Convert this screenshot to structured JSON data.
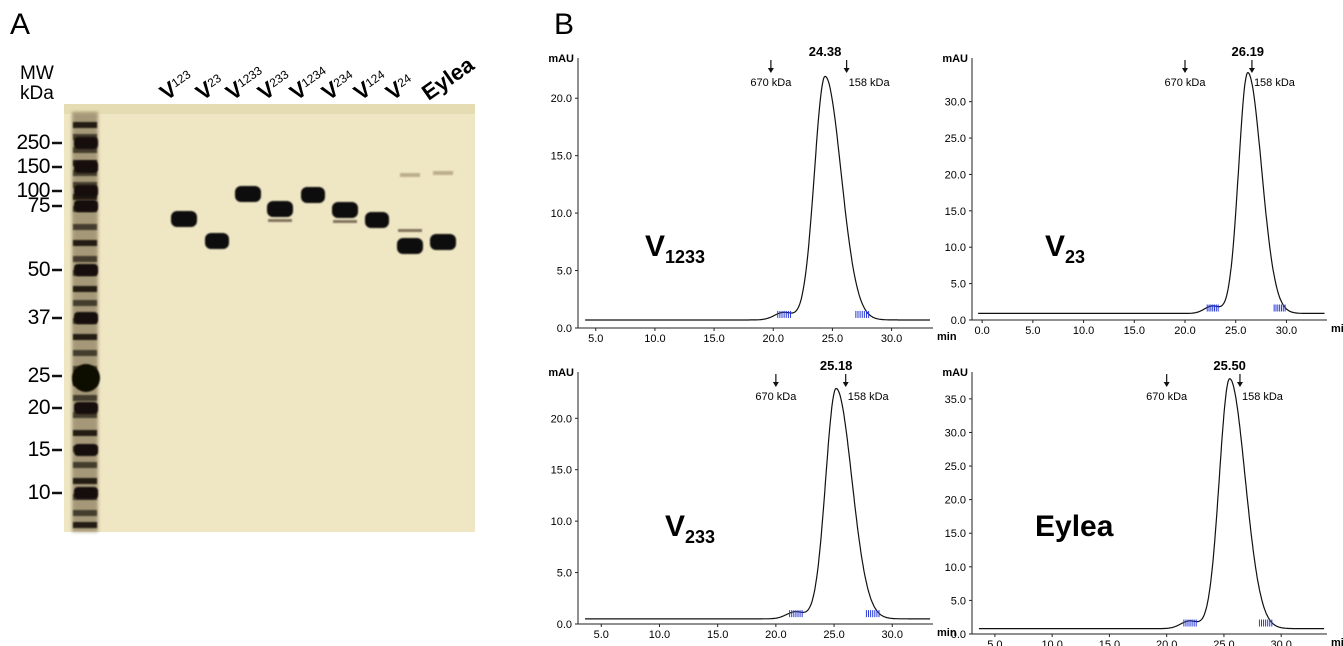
{
  "panel_a": {
    "letter": "A",
    "mw_header": [
      "MW",
      "kDa"
    ],
    "markers": [
      "250",
      "150",
      "100",
      "75",
      "50",
      "37",
      "25",
      "20",
      "15",
      "10"
    ],
    "lanes": [
      {
        "main": "V",
        "sub": "123"
      },
      {
        "main": "V",
        "sub": "23"
      },
      {
        "main": "V",
        "sub": "1233"
      },
      {
        "main": "V",
        "sub": "233"
      },
      {
        "main": "V",
        "sub": "1234"
      },
      {
        "main": "V",
        "sub": "234"
      },
      {
        "main": "V",
        "sub": "124"
      },
      {
        "main": "V",
        "sub": "24"
      },
      {
        "main": "Eylea",
        "sub": ""
      }
    ],
    "colors": {
      "gel_background": "#efe6c4",
      "band": "#111111"
    }
  },
  "panel_b": {
    "letter": "B",
    "chart_data": [
      {
        "type": "line",
        "label_main": "V",
        "label_sub": "1233",
        "ylabel": "mAU",
        "xlabel": "min",
        "xticks": [
          "5.0",
          "10.0",
          "15.0",
          "20.0",
          "25.0",
          "30.0"
        ],
        "yticks": [
          "0.0",
          "5.0",
          "10.0",
          "15.0",
          "20.0"
        ],
        "xlim": [
          3.5,
          33.5
        ],
        "ylim": [
          0,
          23.5
        ],
        "baseline": 0.7,
        "peak_time": 24.38,
        "peak_height": 21.9,
        "peak_label": "24.38",
        "markers": [
          {
            "label": "670 kDa",
            "x": 19.8
          },
          {
            "label": "158 kDa",
            "x": 26.2
          }
        ]
      },
      {
        "type": "line",
        "label_main": "V",
        "label_sub": "23",
        "ylabel": "mAU",
        "xlabel": "min",
        "xticks": [
          "0.0",
          "5.0",
          "10.0",
          "15.0",
          "20.0",
          "25.0",
          "30.0"
        ],
        "yticks": [
          "0.0",
          "5.0",
          "10.0",
          "15.0",
          "20.0",
          "25.0",
          "30.0"
        ],
        "xlim": [
          -1.0,
          34.0
        ],
        "ylim": [
          0,
          36
        ],
        "baseline": 0.9,
        "peak_time": 26.19,
        "peak_height": 34.0,
        "peak_label": "26.19",
        "markers": [
          {
            "label": "670 kDa",
            "x": 20.0
          },
          {
            "label": "158 kDa",
            "x": 26.6
          }
        ]
      },
      {
        "type": "line",
        "label_main": "V",
        "label_sub": "233",
        "ylabel": "mAU",
        "xlabel": "min",
        "xticks": [
          "5.0",
          "10.0",
          "15.0",
          "20.0",
          "25.0",
          "30.0"
        ],
        "yticks": [
          "0.0",
          "5.0",
          "10.0",
          "15.0",
          "20.0"
        ],
        "xlim": [
          3.0,
          33.5
        ],
        "ylim": [
          0,
          24.5
        ],
        "baseline": 0.5,
        "peak_time": 25.18,
        "peak_height": 22.9,
        "peak_label": "25.18",
        "markers": [
          {
            "label": "670 kDa",
            "x": 20.0
          },
          {
            "label": "158 kDa",
            "x": 26.0
          }
        ]
      },
      {
        "type": "line",
        "label_main": "Eylea",
        "label_sub": "",
        "ylabel": "mAU",
        "xlabel": "min",
        "xticks": [
          "5.0",
          "10.0",
          "15.0",
          "20.0",
          "25.0",
          "30.0"
        ],
        "yticks": [
          "0.0",
          "5.0",
          "10.0",
          "15.0",
          "20.0",
          "25.0",
          "30.0",
          "35.0"
        ],
        "xlim": [
          3.0,
          34.0
        ],
        "ylim": [
          0,
          39
        ],
        "baseline": 0.8,
        "peak_time": 25.5,
        "peak_height": 38.0,
        "peak_label": "25.50",
        "markers": [
          {
            "label": "670 kDa",
            "x": 20.0
          },
          {
            "label": "158 kDa",
            "x": 26.4
          }
        ]
      }
    ],
    "colors": {
      "trace": "#111111",
      "noise": "#2a3bd6",
      "axis": "#222222"
    }
  }
}
